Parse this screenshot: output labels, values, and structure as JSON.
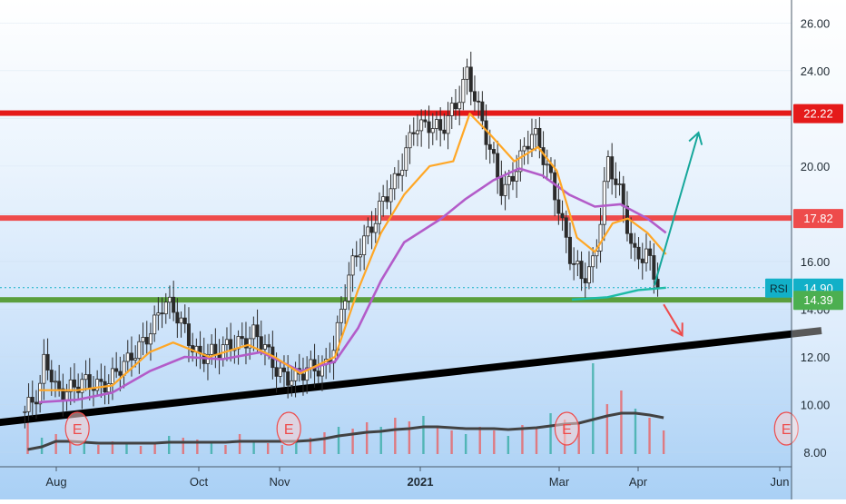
{
  "chart_data": {
    "type": "line",
    "subtype": "candlestick-with-volume",
    "title": "",
    "x_ticks": [
      "Aug",
      "Oct",
      "Nov",
      "2021",
      "Mar",
      "Apr",
      "Jun"
    ],
    "y_ticks": [
      "26.00",
      "24.00",
      "22.00",
      "20.00",
      "18.00",
      "16.00",
      "14.00",
      "12.00",
      "10.00",
      "8.00"
    ],
    "ylim": [
      7.7,
      26.8
    ],
    "price_labels": [
      {
        "value": 22.22,
        "text": "22.22",
        "color": "#e51a1a"
      },
      {
        "value": 17.82,
        "text": "17.82",
        "color": "#ee4b4b"
      },
      {
        "value": 14.9,
        "text": "14.90",
        "color": "#12b0c8",
        "tag": "RSI"
      },
      {
        "value": 14.39,
        "text": "14.39",
        "color": "#4caf50"
      }
    ],
    "horizontal_levels": [
      {
        "value": 22.22,
        "color": "#e51a1a"
      },
      {
        "value": 17.82,
        "color": "#ee4b4b"
      },
      {
        "value": 14.39,
        "color": "#5a9e3c"
      }
    ],
    "trendline": {
      "color": "#000000",
      "start": {
        "date": "2020-06-15",
        "value": 9.2
      },
      "end": {
        "date": "2021-06-20",
        "value": 13.1
      }
    },
    "earnings_markers": [
      {
        "date": "2020-08-10",
        "text": "E"
      },
      {
        "date": "2020-11-05",
        "text": "E"
      },
      {
        "date": "2021-03-04",
        "text": "E"
      },
      {
        "date": "2021-06-04",
        "text": "E"
      }
    ],
    "projection_arrows": [
      {
        "direction": "up",
        "color": "#16a79b",
        "from": {
          "date": "2021-04-08",
          "value": 15.0
        },
        "to": {
          "date": "2021-04-27",
          "value": 21.4
        }
      },
      {
        "direction": "down",
        "color": "#ee4b4b",
        "from": {
          "date": "2021-04-12",
          "value": 14.2
        },
        "to": {
          "date": "2021-04-20",
          "value": 12.9
        }
      }
    ],
    "colors": {
      "up": "#26a69a",
      "down": "#ef5350",
      "candle_body": "#2b2b2b",
      "ema_fast": "#ffa726",
      "ema_slow": "#b35cc9",
      "volume_avg": "#424242",
      "rsi_like": "#1dbba6"
    },
    "series": [
      {
        "name": "",
        "kind": "close",
        "points": [
          [
            "2020-07-10",
            9.7
          ],
          [
            "2020-07-20",
            10.2
          ],
          [
            "2020-07-24",
            12.0
          ],
          [
            "2020-08-01",
            10.8
          ],
          [
            "2020-08-10",
            10.6
          ],
          [
            "2020-08-20",
            11.0
          ],
          [
            "2020-09-01",
            11.6
          ],
          [
            "2020-09-10",
            13.3
          ],
          [
            "2020-09-16",
            14.2
          ],
          [
            "2020-09-25",
            13.2
          ],
          [
            "2020-10-01",
            12.2
          ],
          [
            "2020-10-08",
            11.9
          ],
          [
            "2020-10-15",
            12.8
          ],
          [
            "2020-10-22",
            12.9
          ],
          [
            "2020-10-30",
            11.6
          ],
          [
            "2020-11-10",
            11.1
          ],
          [
            "2020-11-20",
            11.6
          ],
          [
            "2020-11-25",
            12.8
          ],
          [
            "2020-12-01",
            15.2
          ],
          [
            "2020-12-08",
            17.0
          ],
          [
            "2020-12-15",
            18.6
          ],
          [
            "2020-12-22",
            19.2
          ],
          [
            "2020-12-30",
            22.0
          ],
          [
            "2021-01-05",
            21.8
          ],
          [
            "2021-01-10",
            21.2
          ],
          [
            "2021-01-16",
            22.6
          ],
          [
            "2021-01-21",
            24.2
          ],
          [
            "2021-01-25",
            22.6
          ],
          [
            "2021-01-30",
            20.6
          ],
          [
            "2021-02-05",
            19.0
          ],
          [
            "2021-02-10",
            20.0
          ],
          [
            "2021-02-18",
            21.2
          ],
          [
            "2021-02-25",
            19.8
          ],
          [
            "2021-03-01",
            18.4
          ],
          [
            "2021-03-05",
            16.2
          ],
          [
            "2021-03-10",
            15.0
          ],
          [
            "2021-03-15",
            16.2
          ],
          [
            "2021-03-20",
            20.4
          ],
          [
            "2021-03-25",
            18.6
          ],
          [
            "2021-03-30",
            16.2
          ],
          [
            "2021-04-05",
            16.6
          ],
          [
            "2021-04-10",
            14.9
          ]
        ]
      },
      {
        "name": "",
        "kind": "ema_fast",
        "points": [
          [
            "2020-07-20",
            10.6
          ],
          [
            "2020-08-10",
            10.6
          ],
          [
            "2020-08-25",
            10.8
          ],
          [
            "2020-09-10",
            12.2
          ],
          [
            "2020-09-20",
            12.6
          ],
          [
            "2020-10-05",
            12.0
          ],
          [
            "2020-10-20",
            12.5
          ],
          [
            "2020-10-30",
            12.0
          ],
          [
            "2020-11-10",
            11.3
          ],
          [
            "2020-11-25",
            12.0
          ],
          [
            "2020-12-05",
            14.8
          ],
          [
            "2020-12-15",
            17.2
          ],
          [
            "2020-12-25",
            18.8
          ],
          [
            "2021-01-05",
            20.0
          ],
          [
            "2021-01-15",
            20.2
          ],
          [
            "2021-01-22",
            22.2
          ],
          [
            "2021-01-30",
            21.4
          ],
          [
            "2021-02-10",
            20.2
          ],
          [
            "2021-02-20",
            20.8
          ],
          [
            "2021-02-28",
            19.8
          ],
          [
            "2021-03-08",
            17.0
          ],
          [
            "2021-03-15",
            16.4
          ],
          [
            "2021-03-22",
            17.6
          ],
          [
            "2021-03-28",
            17.8
          ],
          [
            "2021-04-05",
            17.2
          ],
          [
            "2021-04-13",
            16.3
          ]
        ]
      },
      {
        "name": "",
        "kind": "ema_slow",
        "points": [
          [
            "2020-07-20",
            10.1
          ],
          [
            "2020-08-10",
            10.2
          ],
          [
            "2020-08-25",
            10.5
          ],
          [
            "2020-09-10",
            11.4
          ],
          [
            "2020-09-25",
            12.0
          ],
          [
            "2020-10-10",
            11.9
          ],
          [
            "2020-10-25",
            12.2
          ],
          [
            "2020-11-10",
            11.4
          ],
          [
            "2020-11-25",
            11.8
          ],
          [
            "2020-12-05",
            13.2
          ],
          [
            "2020-12-15",
            15.2
          ],
          [
            "2020-12-25",
            16.8
          ],
          [
            "2021-01-10",
            17.8
          ],
          [
            "2021-01-20",
            18.6
          ],
          [
            "2021-02-01",
            19.4
          ],
          [
            "2021-02-12",
            19.9
          ],
          [
            "2021-02-22",
            19.6
          ],
          [
            "2021-03-05",
            18.8
          ],
          [
            "2021-03-15",
            18.3
          ],
          [
            "2021-03-25",
            18.4
          ],
          [
            "2021-04-05",
            17.8
          ],
          [
            "2021-04-13",
            17.2
          ]
        ]
      },
      {
        "name": "",
        "kind": "rsi_like",
        "points": [
          [
            "2021-03-06",
            14.4
          ],
          [
            "2021-03-20",
            14.5
          ],
          [
            "2021-04-01",
            14.8
          ],
          [
            "2021-04-13",
            14.9
          ]
        ]
      }
    ],
    "volume": {
      "values": [
        0.4,
        0.18,
        0.22,
        0.15,
        0.12,
        0.1,
        0.14,
        0.11,
        0.09,
        0.12,
        0.2,
        0.18,
        0.16,
        0.13,
        0.1,
        0.22,
        0.15,
        0.12,
        0.1,
        0.14,
        0.18,
        0.24,
        0.3,
        0.28,
        0.35,
        0.3,
        0.4,
        0.36,
        0.42,
        0.3,
        0.26,
        0.22,
        0.3,
        0.26,
        0.2,
        0.32,
        0.28,
        0.45,
        0.38,
        0.34,
        1.0,
        0.55,
        0.7,
        0.5,
        0.4,
        0.26
      ],
      "avg": [
        0.05,
        0.08,
        0.14,
        0.14,
        0.13,
        0.12,
        0.12,
        0.12,
        0.12,
        0.12,
        0.13,
        0.13,
        0.13,
        0.13,
        0.13,
        0.14,
        0.14,
        0.14,
        0.14,
        0.14,
        0.15,
        0.17,
        0.2,
        0.22,
        0.24,
        0.25,
        0.27,
        0.28,
        0.3,
        0.3,
        0.29,
        0.28,
        0.28,
        0.28,
        0.27,
        0.28,
        0.29,
        0.31,
        0.33,
        0.34,
        0.38,
        0.42,
        0.45,
        0.45,
        0.43,
        0.4
      ]
    }
  }
}
